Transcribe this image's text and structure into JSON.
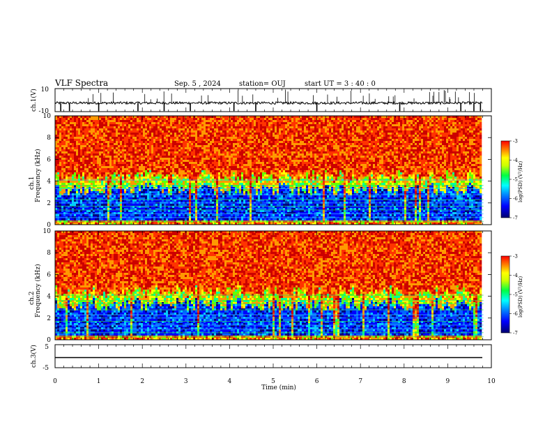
{
  "header": {
    "title": "VLF Spectra",
    "date": "Sep. 5 , 2024",
    "station": "station= OUJ",
    "start": "start  UT  =   3  : 40 : 0"
  },
  "chart_data": [
    {
      "type": "line",
      "name": "ch1-waveform",
      "ylabel": "ch.1(V)",
      "x_range": [
        0,
        10
      ],
      "ylim": [
        -10,
        10
      ],
      "yticks": [
        "10",
        "-10"
      ],
      "baseline": -2.5,
      "spike_times_min": [
        0.13,
        0.33,
        1.0,
        1.9,
        2.5,
        3.1,
        4.1,
        4.6,
        6.0,
        7.9,
        9.3,
        9.6,
        9.75
      ]
    },
    {
      "type": "heatmap",
      "name": "ch1-spectrogram",
      "ylabel": "ch.1\nFrequency (kHz)",
      "x_range": [
        0,
        9.82
      ],
      "ylim": [
        0,
        10
      ],
      "yticks": [
        "0",
        "2",
        "4",
        "6",
        "8",
        "10"
      ],
      "colorbar": {
        "label": "log(PSD) (V²/Hz)",
        "range": [
          -7,
          -3
        ],
        "ticks": [
          "-3",
          "-4",
          "-5",
          "-6",
          "-7"
        ]
      }
    },
    {
      "type": "heatmap",
      "name": "ch2-spectrogram",
      "ylabel": "ch.2\nFrequency (kHz)",
      "x_range": [
        0,
        9.82
      ],
      "ylim": [
        0,
        10
      ],
      "yticks": [
        "0",
        "2",
        "4",
        "6",
        "8",
        "10"
      ],
      "colorbar": {
        "label": "log(PSD) (V²/Hz)",
        "range": [
          -7,
          -3
        ],
        "ticks": [
          "-3",
          "-4",
          "-5",
          "-6",
          "-7"
        ]
      }
    },
    {
      "type": "line",
      "name": "ch3-waveform",
      "ylabel": "ch.3(V)",
      "x_range": [
        0,
        10
      ],
      "ylim": [
        -5,
        5
      ],
      "yticks": [
        "5",
        "-5"
      ],
      "baseline": -1.8
    }
  ],
  "xaxis": {
    "label": "Time (min)",
    "ticks": [
      "0",
      "1",
      "2",
      "3",
      "4",
      "5",
      "6",
      "7",
      "8",
      "9",
      "10"
    ]
  },
  "colormap": [
    "#000080",
    "#0000ff",
    "#0066ff",
    "#00ccff",
    "#00ff99",
    "#66ff00",
    "#ffff00",
    "#ff9900",
    "#ff3300",
    "#cc0000"
  ]
}
